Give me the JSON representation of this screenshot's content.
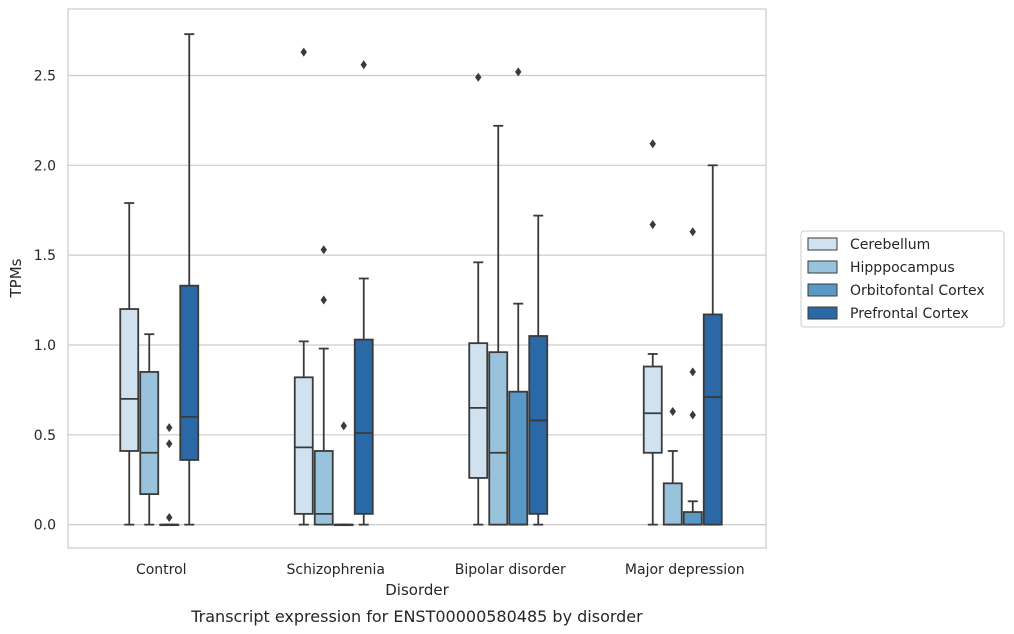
{
  "caption": "Transcript expression for ENST00000580485 by disorder",
  "chart_data": {
    "type": "box",
    "title": "",
    "xlabel": "Disorder",
    "ylabel": "TPMs",
    "ylim": [
      -0.13,
      2.87
    ],
    "yticks": [
      "0.0",
      "0.5",
      "1.0",
      "1.5",
      "2.0",
      "2.5"
    ],
    "ytick_values": [
      0.0,
      0.5,
      1.0,
      1.5,
      2.0,
      2.5
    ],
    "grid": "horizontal",
    "legend_position": "right",
    "categories": [
      "Control",
      "Schizophrenia",
      "Bipolar disorder",
      "Major depression"
    ],
    "series": [
      {
        "name": "Cerebellum",
        "color": "#d0e1f0",
        "boxes": [
          {
            "whislo": 0.0,
            "q1": 0.41,
            "med": 0.7,
            "q3": 1.2,
            "whishi": 1.79,
            "fliers": []
          },
          {
            "whislo": 0.0,
            "q1": 0.06,
            "med": 0.43,
            "q3": 0.82,
            "whishi": 1.02,
            "fliers": [
              2.63
            ]
          },
          {
            "whislo": 0.0,
            "q1": 0.26,
            "med": 0.65,
            "q3": 1.01,
            "whishi": 1.46,
            "fliers": [
              2.49
            ]
          },
          {
            "whislo": 0.0,
            "q1": 0.4,
            "med": 0.62,
            "q3": 0.88,
            "whishi": 0.95,
            "fliers": [
              1.67,
              2.12
            ]
          }
        ]
      },
      {
        "name": "Hipppocampus",
        "color": "#99c3dc",
        "boxes": [
          {
            "whislo": 0.0,
            "q1": 0.17,
            "med": 0.4,
            "q3": 0.85,
            "whishi": 1.06,
            "fliers": []
          },
          {
            "whislo": 0.0,
            "q1": 0.0,
            "med": 0.06,
            "q3": 0.41,
            "whishi": 0.98,
            "fliers": [
              1.25,
              1.53
            ]
          },
          {
            "whislo": 0.0,
            "q1": 0.0,
            "med": 0.4,
            "q3": 0.96,
            "whishi": 2.22,
            "fliers": []
          },
          {
            "whislo": 0.0,
            "q1": 0.0,
            "med": 0.0,
            "q3": 0.23,
            "whishi": 0.41,
            "fliers": [
              0.63
            ]
          }
        ]
      },
      {
        "name": "Orbitofontal Cortex",
        "color": "#5a99c6",
        "boxes": [
          {
            "whislo": 0.0,
            "q1": 0.0,
            "med": 0.0,
            "q3": 0.0,
            "whishi": 0.0,
            "fliers": [
              0.04,
              0.45,
              0.54
            ]
          },
          {
            "whislo": 0.0,
            "q1": 0.0,
            "med": 0.0,
            "q3": 0.0,
            "whishi": 0.0,
            "fliers": [
              0.55
            ]
          },
          {
            "whislo": 0.0,
            "q1": 0.0,
            "med": 0.0,
            "q3": 0.74,
            "whishi": 1.23,
            "fliers": [
              2.52
            ]
          },
          {
            "whislo": 0.0,
            "q1": 0.0,
            "med": 0.0,
            "q3": 0.07,
            "whishi": 0.13,
            "fliers": [
              0.61,
              0.85,
              1.63
            ]
          }
        ]
      },
      {
        "name": "Prefrontal Cortex",
        "color": "#2a68a6",
        "boxes": [
          {
            "whislo": 0.0,
            "q1": 0.36,
            "med": 0.6,
            "q3": 1.33,
            "whishi": 2.73,
            "fliers": []
          },
          {
            "whislo": 0.0,
            "q1": 0.06,
            "med": 0.51,
            "q3": 1.03,
            "whishi": 1.37,
            "fliers": [
              2.56
            ]
          },
          {
            "whislo": 0.0,
            "q1": 0.06,
            "med": 0.58,
            "q3": 1.05,
            "whishi": 1.72,
            "fliers": []
          },
          {
            "whislo": 0.0,
            "q1": 0.0,
            "med": 0.71,
            "q3": 1.17,
            "whishi": 2.0,
            "fliers": []
          }
        ]
      }
    ]
  }
}
